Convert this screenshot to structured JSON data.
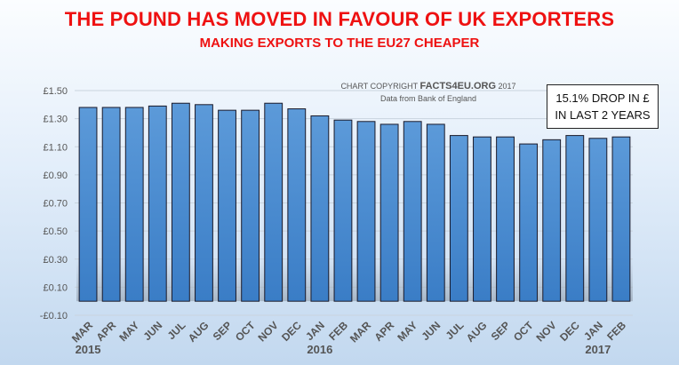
{
  "title": "THE POUND HAS MOVED IN FAVOUR OF UK EXPORTERS",
  "subtitle": "MAKING EXPORTS TO THE EU27 CHEAPER",
  "copyright_prefix": "CHART COPYRIGHT ",
  "copyright_brand": "FACTS4EU.ORG",
  "copyright_suffix": " 2017",
  "source": "Data from Bank of England",
  "note": {
    "line1": "15.1% DROP IN £",
    "line2": "IN LAST 2 YEARS"
  },
  "colors": {
    "title": "#ee1111",
    "bar_fill": "#4f8fd2",
    "bar_outline": "#1a1a2a"
  },
  "chart_data": {
    "type": "bar",
    "categories": [
      "MAR",
      "APR",
      "MAY",
      "JUN",
      "JUL",
      "AUG",
      "SEP",
      "OCT",
      "NOV",
      "DEC",
      "JAN",
      "FEB",
      "MAR",
      "APR",
      "MAY",
      "JUN",
      "JUL",
      "AUG",
      "SEP",
      "OCT",
      "NOV",
      "DEC",
      "JAN",
      "FEB"
    ],
    "values": [
      1.38,
      1.38,
      1.38,
      1.39,
      1.41,
      1.4,
      1.36,
      1.36,
      1.41,
      1.37,
      1.32,
      1.29,
      1.28,
      1.26,
      1.28,
      1.26,
      1.18,
      1.17,
      1.17,
      1.12,
      1.15,
      1.18,
      1.16,
      1.17
    ],
    "year_labels": [
      {
        "label": "2015",
        "category_index": 0
      },
      {
        "label": "2016",
        "category_index": 10
      },
      {
        "label": "2017",
        "category_index": 22
      }
    ],
    "yticks": [
      -0.1,
      0.1,
      0.3,
      0.5,
      0.7,
      0.9,
      1.1,
      1.3,
      1.5
    ],
    "ytick_labels": [
      "-£0.10",
      "£0.10",
      "£0.30",
      "£0.50",
      "£0.70",
      "£0.90",
      "£1.10",
      "£1.30",
      "£1.50"
    ],
    "ylim": [
      -0.1,
      1.5
    ],
    "baseline": 0,
    "grid": true,
    "legend": "none",
    "xlabel": "",
    "ylabel": ""
  }
}
